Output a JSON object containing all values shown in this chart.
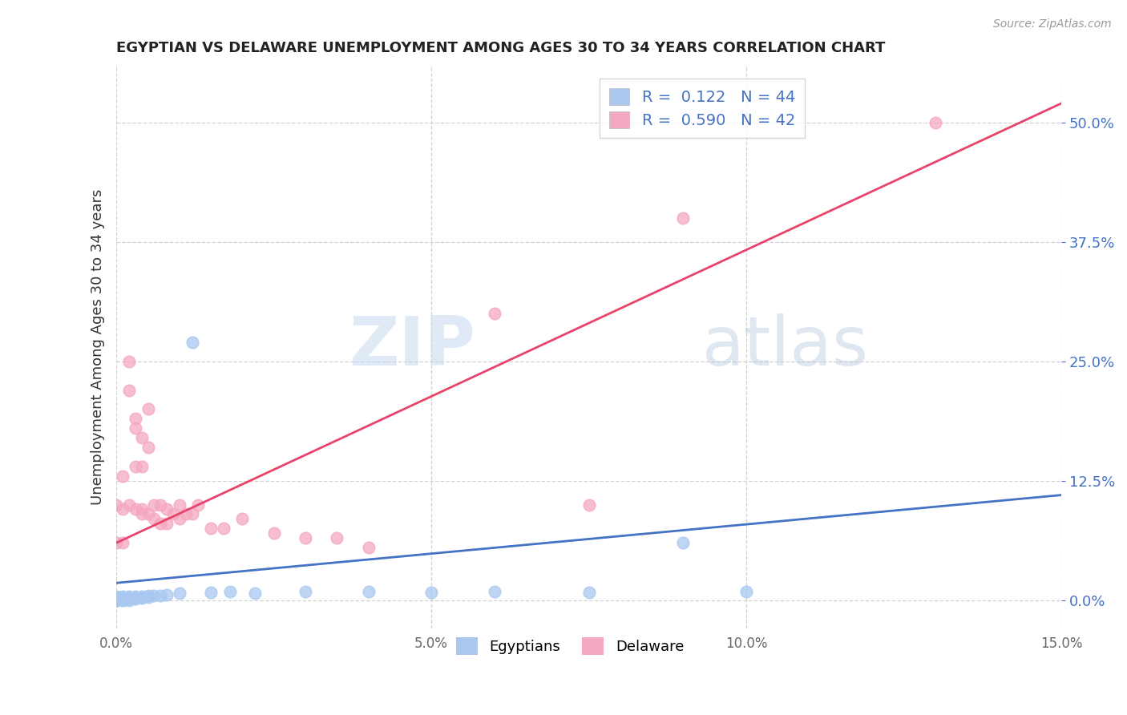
{
  "title": "EGYPTIAN VS DELAWARE UNEMPLOYMENT AMONG AGES 30 TO 34 YEARS CORRELATION CHART",
  "source": "Source: ZipAtlas.com",
  "ylabel": "Unemployment Among Ages 30 to 34 years",
  "xlim": [
    0.0,
    0.15
  ],
  "ylim": [
    -0.03,
    0.56
  ],
  "xticks": [
    0.0,
    0.05,
    0.1,
    0.15
  ],
  "xtick_labels": [
    "0.0%",
    "5.0%",
    "10.0%",
    "15.0%"
  ],
  "yticks_right": [
    0.0,
    0.125,
    0.25,
    0.375,
    0.5
  ],
  "ytick_labels_right": [
    "0.0%",
    "12.5%",
    "25.0%",
    "37.5%",
    "50.0%"
  ],
  "legend_R1": "R =  0.122",
  "legend_N1": "N = 44",
  "legend_R2": "R =  0.590",
  "legend_N2": "N = 42",
  "color_egyptian": "#A8C8F0",
  "color_delaware": "#F4A8C0",
  "color_line_egyptian": "#4472C4",
  "color_line_delaware": "#E8436A",
  "watermark_zip": "ZIP",
  "watermark_atlas": "atlas",
  "background_color": "#FFFFFF",
  "egyptian_x": [
    0.0,
    0.0,
    0.0,
    0.0,
    0.0,
    0.0,
    0.0,
    0.0,
    0.0,
    0.001,
    0.001,
    0.001,
    0.001,
    0.001,
    0.001,
    0.002,
    0.002,
    0.002,
    0.002,
    0.002,
    0.003,
    0.003,
    0.003,
    0.003,
    0.004,
    0.004,
    0.004,
    0.005,
    0.005,
    0.006,
    0.007,
    0.008,
    0.01,
    0.012,
    0.015,
    0.018,
    0.022,
    0.03,
    0.04,
    0.05,
    0.06,
    0.075,
    0.09,
    0.1
  ],
  "egyptian_y": [
    0.0,
    0.0,
    0.0,
    0.001,
    0.001,
    0.002,
    0.002,
    0.003,
    0.004,
    0.0,
    0.001,
    0.001,
    0.002,
    0.003,
    0.004,
    0.0,
    0.001,
    0.002,
    0.003,
    0.004,
    0.001,
    0.002,
    0.003,
    0.004,
    0.002,
    0.003,
    0.004,
    0.003,
    0.005,
    0.005,
    0.005,
    0.006,
    0.007,
    0.27,
    0.008,
    0.009,
    0.007,
    0.009,
    0.009,
    0.008,
    0.009,
    0.008,
    0.06,
    0.009
  ],
  "delaware_x": [
    0.0,
    0.0,
    0.001,
    0.001,
    0.001,
    0.002,
    0.002,
    0.002,
    0.003,
    0.003,
    0.003,
    0.003,
    0.004,
    0.004,
    0.004,
    0.004,
    0.005,
    0.005,
    0.005,
    0.006,
    0.006,
    0.007,
    0.007,
    0.008,
    0.008,
    0.009,
    0.01,
    0.01,
    0.011,
    0.012,
    0.013,
    0.015,
    0.017,
    0.02,
    0.025,
    0.03,
    0.035,
    0.04,
    0.06,
    0.075,
    0.09,
    0.13
  ],
  "delaware_y": [
    0.06,
    0.1,
    0.13,
    0.06,
    0.095,
    0.22,
    0.25,
    0.1,
    0.18,
    0.19,
    0.14,
    0.095,
    0.14,
    0.17,
    0.095,
    0.09,
    0.16,
    0.2,
    0.09,
    0.1,
    0.085,
    0.1,
    0.08,
    0.095,
    0.08,
    0.09,
    0.1,
    0.085,
    0.09,
    0.09,
    0.1,
    0.075,
    0.075,
    0.085,
    0.07,
    0.065,
    0.065,
    0.055,
    0.3,
    0.1,
    0.4,
    0.5
  ],
  "line_e_x0": 0.0,
  "line_e_x1": 0.15,
  "line_e_y0": 0.018,
  "line_e_y1": 0.11,
  "line_d_x0": 0.0,
  "line_d_x1": 0.15,
  "line_d_y0": 0.06,
  "line_d_y1": 0.52
}
